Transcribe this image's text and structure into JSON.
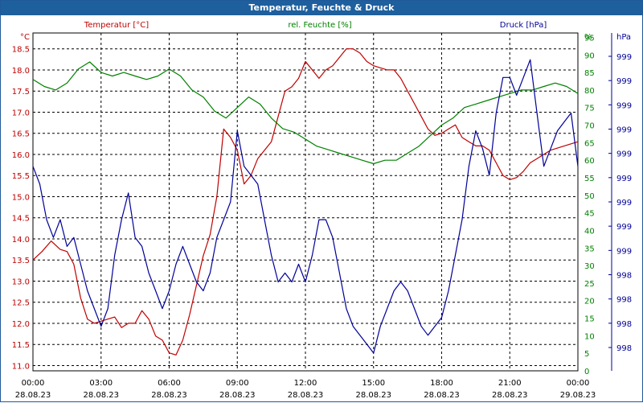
{
  "window": {
    "title": "Temperatur, Feuchte & Druck"
  },
  "colors": {
    "temperature": "#c00000",
    "humidity": "#008000",
    "pressure": "#000099",
    "grid": "#000000",
    "titlebar": "#1e5f9e"
  },
  "chart_data": {
    "type": "line",
    "grid": true,
    "legend": "top",
    "x_ticks": [
      {
        "time": "00:00",
        "date": "28.08.23"
      },
      {
        "time": "03:00",
        "date": "28.08.23"
      },
      {
        "time": "06:00",
        "date": "28.08.23"
      },
      {
        "time": "09:00",
        "date": "28.08.23"
      },
      {
        "time": "12:00",
        "date": "28.08.23"
      },
      {
        "time": "15:00",
        "date": "28.08.23"
      },
      {
        "time": "18:00",
        "date": "28.08.23"
      },
      {
        "time": "21:00",
        "date": "28.08.23"
      },
      {
        "time": "00:00",
        "date": "29.08.23"
      }
    ],
    "xlim_hours": [
      0,
      24
    ],
    "axes": {
      "temperature": {
        "label": "Temperatur [°C]",
        "unit": "°C",
        "ylim": [
          10.875,
          18.875
        ],
        "ticks": [
          "11.0",
          "11.5",
          "12.0",
          "12.5",
          "13.0",
          "13.5",
          "14.0",
          "14.5",
          "15.0",
          "15.5",
          "16.0",
          "16.5",
          "17.0",
          "17.5",
          "18.0",
          "18.5"
        ]
      },
      "humidity": {
        "label": "rel. Feuchte [%]",
        "unit": "%",
        "ylim": [
          0,
          96.25
        ],
        "ticks": [
          "0",
          "5",
          "10",
          "15",
          "20",
          "25",
          "30",
          "35",
          "40",
          "45",
          "50",
          "55",
          "60",
          "65",
          "70",
          "75",
          "80",
          "85",
          "90",
          "95"
        ]
      },
      "pressure": {
        "label": "Druck [hPa]",
        "unit": "hPa",
        "ylim": [
          997.85,
          999.75
        ],
        "ticks": [
          "998",
          "998",
          "998",
          "998",
          "999",
          "999",
          "999",
          "999",
          "999",
          "999",
          "999",
          "999",
          "999"
        ]
      }
    },
    "series": [
      {
        "name": "Temperatur [°C]",
        "axis": "temperature",
        "x": [
          0,
          0.4,
          0.8,
          1.2,
          1.5,
          1.8,
          2.1,
          2.4,
          2.7,
          3.0,
          3.3,
          3.6,
          3.9,
          4.2,
          4.5,
          4.8,
          5.1,
          5.4,
          5.7,
          6.0,
          6.3,
          6.6,
          6.9,
          7.2,
          7.5,
          7.8,
          8.1,
          8.4,
          8.7,
          9.0,
          9.3,
          9.6,
          9.9,
          10.2,
          10.5,
          10.8,
          11.1,
          11.4,
          11.7,
          12.0,
          12.3,
          12.6,
          12.9,
          13.2,
          13.5,
          13.8,
          14.1,
          14.4,
          14.7,
          15.0,
          15.3,
          15.6,
          15.9,
          16.2,
          16.5,
          16.8,
          17.1,
          17.4,
          17.7,
          18.0,
          18.3,
          18.6,
          18.9,
          19.2,
          19.5,
          19.8,
          20.1,
          20.4,
          20.7,
          21.0,
          21.3,
          21.6,
          21.9,
          22.2,
          22.5,
          22.8,
          23.1,
          23.4,
          23.7,
          24.0
        ],
        "values": [
          13.5,
          13.7,
          13.95,
          13.75,
          13.7,
          13.4,
          12.6,
          12.1,
          12.0,
          12.05,
          12.1,
          12.15,
          11.9,
          12.0,
          12.0,
          12.3,
          12.1,
          11.7,
          11.6,
          11.3,
          11.25,
          11.6,
          12.2,
          12.9,
          13.6,
          14.1,
          15.0,
          16.6,
          16.4,
          16.1,
          15.3,
          15.5,
          15.9,
          16.1,
          16.3,
          16.9,
          17.5,
          17.6,
          17.8,
          18.2,
          18.0,
          17.8,
          18.0,
          18.1,
          18.3,
          18.5,
          18.5,
          18.4,
          18.2,
          18.1,
          18.05,
          18.0,
          18.0,
          17.8,
          17.5,
          17.2,
          16.9,
          16.6,
          16.45,
          16.5,
          16.6,
          16.7,
          16.4,
          16.3,
          16.2,
          16.2,
          16.1,
          15.8,
          15.5,
          15.4,
          15.45,
          15.6,
          15.8,
          15.9,
          16.0,
          16.1,
          16.15,
          16.2,
          16.25,
          16.3
        ]
      },
      {
        "name": "rel. Feuchte [%]",
        "axis": "humidity",
        "x": [
          0,
          0.5,
          1.0,
          1.5,
          2.0,
          2.5,
          3.0,
          3.5,
          4.0,
          4.5,
          5.0,
          5.5,
          6.0,
          6.5,
          7.0,
          7.5,
          8.0,
          8.5,
          9.0,
          9.5,
          10.0,
          10.5,
          11.0,
          11.5,
          12.0,
          12.5,
          13.0,
          13.5,
          14.0,
          14.5,
          15.0,
          15.5,
          16.0,
          16.5,
          17.0,
          17.5,
          18.0,
          18.5,
          19.0,
          19.5,
          20.0,
          20.5,
          21.0,
          21.5,
          22.0,
          22.5,
          23.0,
          23.5,
          24.0
        ],
        "values": [
          83,
          81,
          80,
          82,
          86,
          88,
          85,
          84,
          85,
          84,
          83,
          84,
          86,
          84,
          80,
          78,
          74,
          72,
          75,
          78,
          76,
          72,
          69,
          68,
          66,
          64,
          63,
          62,
          61,
          60,
          59,
          60,
          60,
          62,
          64,
          67,
          70,
          72,
          75,
          76,
          77,
          78,
          79,
          80,
          80,
          81,
          82,
          81,
          79
        ]
      },
      {
        "name": "Druck [hPa]",
        "axis": "pressure",
        "x": [
          0,
          0.3,
          0.6,
          0.9,
          1.2,
          1.5,
          1.8,
          2.1,
          2.4,
          2.7,
          3.0,
          3.3,
          3.6,
          3.9,
          4.2,
          4.5,
          4.8,
          5.1,
          5.4,
          5.7,
          6.0,
          6.3,
          6.6,
          6.9,
          7.2,
          7.5,
          7.8,
          8.1,
          8.4,
          8.7,
          9.0,
          9.3,
          9.6,
          9.9,
          10.2,
          10.5,
          10.8,
          11.1,
          11.4,
          11.7,
          12.0,
          12.3,
          12.6,
          12.9,
          13.2,
          13.5,
          13.8,
          14.1,
          14.4,
          14.7,
          15.0,
          15.3,
          15.6,
          15.9,
          16.2,
          16.5,
          16.8,
          17.1,
          17.4,
          17.7,
          18.0,
          18.3,
          18.6,
          18.9,
          19.2,
          19.5,
          19.8,
          20.1,
          20.4,
          20.7,
          21.0,
          21.3,
          21.6,
          21.9,
          22.2,
          22.5,
          22.8,
          23.1,
          23.4,
          23.7,
          24.0
        ],
        "values": [
          999.0,
          998.9,
          998.7,
          998.6,
          998.7,
          998.55,
          998.6,
          998.45,
          998.3,
          998.2,
          998.1,
          998.2,
          998.5,
          998.7,
          998.85,
          998.6,
          998.55,
          998.4,
          998.3,
          998.2,
          998.3,
          998.45,
          998.55,
          998.45,
          998.35,
          998.3,
          998.4,
          998.6,
          998.7,
          998.8,
          999.2,
          999.0,
          998.95,
          998.9,
          998.7,
          998.5,
          998.35,
          998.4,
          998.35,
          998.45,
          998.35,
          998.5,
          998.7,
          998.7,
          998.6,
          998.4,
          998.2,
          998.1,
          998.05,
          998.0,
          997.95,
          998.1,
          998.2,
          998.3,
          998.35,
          998.3,
          998.2,
          998.1,
          998.05,
          998.1,
          998.15,
          998.3,
          998.5,
          998.7,
          999.0,
          999.2,
          999.1,
          998.95,
          999.3,
          999.5,
          999.5,
          999.4,
          999.5,
          999.6,
          999.3,
          999.0,
          999.1,
          999.2,
          999.25,
          999.3,
          999.0
        ]
      }
    ]
  }
}
